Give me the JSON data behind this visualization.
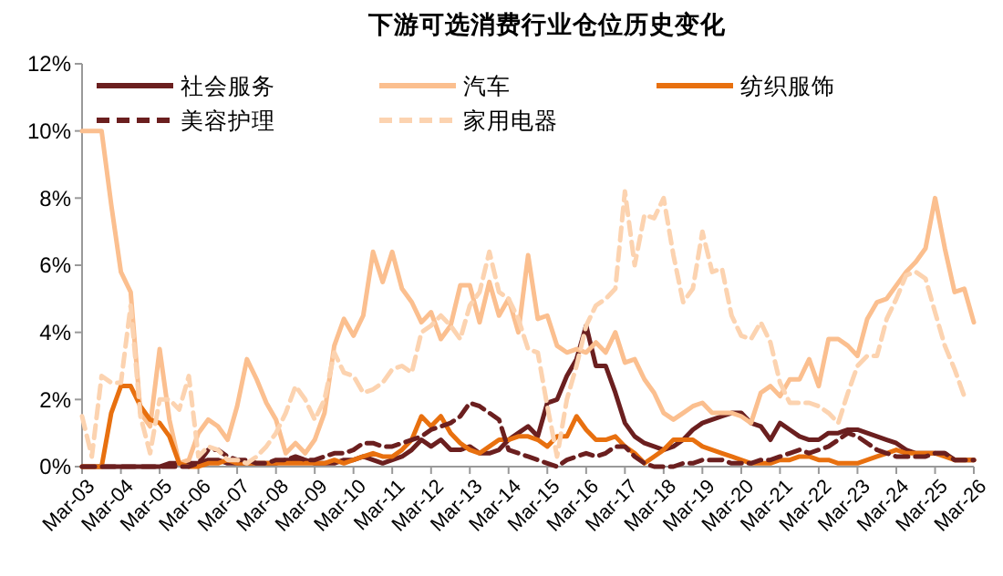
{
  "chart_data": {
    "type": "line",
    "title": "下游可选消费行业仓位历史变化",
    "x": [
      "2003-03",
      "2003-06",
      "2003-09",
      "2003-12",
      "2004-03",
      "2004-06",
      "2004-09",
      "2004-12",
      "2005-03",
      "2005-06",
      "2005-09",
      "2005-12",
      "2006-03",
      "2006-06",
      "2006-09",
      "2006-12",
      "2007-03",
      "2007-06",
      "2007-09",
      "2007-12",
      "2008-03",
      "2008-06",
      "2008-09",
      "2008-12",
      "2009-03",
      "2009-06",
      "2009-09",
      "2009-12",
      "2010-03",
      "2010-06",
      "2010-09",
      "2010-12",
      "2011-03",
      "2011-06",
      "2011-09",
      "2011-12",
      "2012-03",
      "2012-06",
      "2012-09",
      "2012-12",
      "2013-03",
      "2013-06",
      "2013-09",
      "2013-12",
      "2014-03",
      "2014-06",
      "2014-09",
      "2014-12",
      "2015-03",
      "2015-06",
      "2015-09",
      "2015-12",
      "2016-03",
      "2016-06",
      "2016-09",
      "2016-12",
      "2017-03",
      "2017-06",
      "2017-09",
      "2017-12",
      "2018-03",
      "2018-06",
      "2018-09",
      "2018-12",
      "2019-03",
      "2019-06",
      "2019-09",
      "2019-12",
      "2020-03",
      "2020-06",
      "2020-09",
      "2020-12",
      "2021-03",
      "2021-06",
      "2021-09",
      "2021-12",
      "2022-03",
      "2022-06",
      "2022-09",
      "2022-12",
      "2023-03",
      "2023-06",
      "2023-09",
      "2023-12",
      "2024-03",
      "2024-06",
      "2024-09",
      "2024-12",
      "2025-03",
      "2025-06",
      "2025-09",
      "2025-12",
      "2026-03"
    ],
    "series": [
      {
        "name": "社会服务",
        "color": "#6b1f1f",
        "line_style": "solid",
        "values": [
          0,
          0,
          0,
          0,
          0,
          0,
          0,
          0,
          0,
          0.1,
          0.1,
          0.1,
          0.1,
          0.2,
          0.2,
          0.1,
          0.1,
          0.1,
          0.1,
          0.1,
          0.1,
          0.2,
          0.2,
          0.2,
          0.1,
          0.1,
          0.1,
          0.2,
          0.2,
          0.3,
          0.2,
          0.1,
          0.2,
          0.3,
          0.5,
          0.8,
          0.6,
          0.8,
          0.5,
          0.5,
          0.6,
          0.4,
          0.4,
          0.5,
          0.8,
          1.0,
          1.2,
          0.9,
          1.9,
          2.0,
          2.7,
          3.2,
          4.2,
          3.0,
          3.0,
          2.2,
          1.3,
          0.9,
          0.7,
          0.6,
          0.5,
          0.6,
          0.8,
          1.1,
          1.3,
          1.4,
          1.5,
          1.6,
          1.6,
          1.3,
          1.2,
          0.8,
          1.3,
          1.1,
          0.9,
          0.8,
          0.8,
          1.0,
          1.0,
          1.1,
          1.1,
          1.0,
          0.9,
          0.8,
          0.7,
          0.5,
          0.4,
          0.4,
          0.4,
          0.4,
          0.2,
          0.2,
          0.2
        ]
      },
      {
        "name": "汽车",
        "color": "#fbbf8f",
        "line_style": "solid",
        "values": [
          10.0,
          10.0,
          10.0,
          7.8,
          5.8,
          5.2,
          1.6,
          1.2,
          3.5,
          1.4,
          0.1,
          0.2,
          1.0,
          1.4,
          1.2,
          0.8,
          1.8,
          3.2,
          2.6,
          1.9,
          1.4,
          0.4,
          0.7,
          0.4,
          0.8,
          1.6,
          3.6,
          4.4,
          3.9,
          4.5,
          6.4,
          5.5,
          6.4,
          5.3,
          4.9,
          4.3,
          4.6,
          3.8,
          4.2,
          5.4,
          5.4,
          4.3,
          5.5,
          4.5,
          5.0,
          4.0,
          6.3,
          4.4,
          4.5,
          3.6,
          3.4,
          3.5,
          3.4,
          3.7,
          3.4,
          4.0,
          3.1,
          3.2,
          2.6,
          2.2,
          1.6,
          1.4,
          1.6,
          1.8,
          1.9,
          1.6,
          1.6,
          1.6,
          1.5,
          1.3,
          2.2,
          2.4,
          2.1,
          2.6,
          2.6,
          3.2,
          2.4,
          3.8,
          3.8,
          3.6,
          3.3,
          4.4,
          4.9,
          5.0,
          5.4,
          5.8,
          6.1,
          6.5,
          8.0,
          6.5,
          5.2,
          5.3,
          4.3
        ]
      },
      {
        "name": "纺织服饰",
        "color": "#e8700f",
        "line_style": "solid",
        "values": [
          0,
          0,
          0,
          1.6,
          2.4,
          2.4,
          1.8,
          1.4,
          1.3,
          0.9,
          0.1,
          0,
          0,
          0.1,
          0.1,
          0.2,
          0.1,
          0.1,
          0.1,
          0.1,
          0.1,
          0.1,
          0.1,
          0.1,
          0.1,
          0.1,
          0.2,
          0.1,
          0.2,
          0.3,
          0.4,
          0.3,
          0.3,
          0.5,
          0.8,
          1.5,
          1.2,
          1.5,
          1.0,
          0.7,
          0.5,
          0.4,
          0.6,
          0.8,
          0.8,
          0.9,
          0.9,
          0.8,
          0.6,
          0.9,
          0.9,
          1.5,
          1.1,
          0.8,
          0.8,
          0.9,
          0.6,
          0.4,
          0.1,
          0.3,
          0.5,
          0.8,
          0.8,
          0.8,
          0.6,
          0.5,
          0.4,
          0.3,
          0.2,
          0.1,
          0.1,
          0.1,
          0.2,
          0.2,
          0.3,
          0.3,
          0.2,
          0.2,
          0.1,
          0.1,
          0.1,
          0.2,
          0.3,
          0.4,
          0.5,
          0.4,
          0.4,
          0.4,
          0.4,
          0.3,
          0.2,
          0.2,
          0.2
        ]
      },
      {
        "name": "美容护理",
        "color": "#6b1f1f",
        "line_style": "dashed",
        "values": [
          0,
          0,
          0,
          0,
          0,
          0,
          0,
          0,
          0,
          0,
          0,
          0,
          0.1,
          0.5,
          0.5,
          0.3,
          0.2,
          0.2,
          0.1,
          0.1,
          0.2,
          0.2,
          0.3,
          0.2,
          0.2,
          0.3,
          0.4,
          0.4,
          0.5,
          0.7,
          0.7,
          0.6,
          0.6,
          0.7,
          0.8,
          0.9,
          1.1,
          1.2,
          1.3,
          1.5,
          1.9,
          1.8,
          1.6,
          1.4,
          0.5,
          0.4,
          0.3,
          0.2,
          0.1,
          0,
          0.2,
          0.3,
          0.4,
          0.3,
          0.4,
          0.6,
          0.6,
          0.3,
          0.1,
          0,
          0,
          0,
          0.1,
          0.1,
          0.2,
          0.2,
          0.2,
          0.1,
          0.1,
          0.1,
          0.2,
          0.2,
          0.3,
          0.4,
          0.5,
          0.4,
          0.5,
          0.6,
          0.8,
          1.0,
          0.9,
          0.7,
          0.5,
          0.4,
          0.3,
          0.3,
          0.3,
          0.3,
          0.4,
          0.4,
          0.2,
          0.2,
          0.2
        ]
      },
      {
        "name": "家用电器",
        "color": "#fcd3b0",
        "line_style": "dashed",
        "values": [
          1.5,
          0.3,
          2.7,
          2.5,
          2.5,
          4.8,
          1.5,
          0.4,
          2.0,
          2.0,
          1.7,
          2.7,
          0.3,
          0.6,
          0.5,
          0.2,
          0.2,
          0.1,
          0.3,
          0.6,
          1.0,
          1.6,
          2.4,
          2.0,
          1.4,
          2.0,
          3.4,
          2.8,
          2.7,
          2.2,
          2.3,
          2.5,
          2.9,
          3.0,
          2.8,
          4.0,
          4.2,
          4.5,
          4.2,
          3.8,
          4.8,
          5.2,
          6.4,
          5.2,
          5.0,
          4.4,
          3.5,
          3.4,
          1.8,
          0.3,
          2.0,
          3.0,
          4.2,
          4.8,
          5.0,
          5.3,
          8.2,
          6.0,
          7.5,
          7.4,
          8.0,
          6.3,
          4.9,
          5.3,
          7.0,
          5.8,
          5.9,
          4.5,
          3.9,
          3.8,
          4.3,
          3.7,
          2.5,
          1.9,
          1.9,
          1.9,
          1.8,
          1.6,
          1.3,
          2.2,
          3.0,
          3.3,
          3.3,
          4.4,
          5.0,
          5.7,
          5.8,
          5.6,
          4.6,
          3.6,
          2.9,
          2.1,
          null
        ]
      }
    ],
    "xlim": [
      "2003-03",
      "2026-03"
    ],
    "xticks": [
      {
        "value": "2003-03",
        "label": "Mar-03"
      },
      {
        "value": "2004-03",
        "label": "Mar-04"
      },
      {
        "value": "2005-03",
        "label": "Mar-05"
      },
      {
        "value": "2006-03",
        "label": "Mar-06"
      },
      {
        "value": "2007-03",
        "label": "Mar-07"
      },
      {
        "value": "2008-03",
        "label": "Mar-08"
      },
      {
        "value": "2009-03",
        "label": "Mar-09"
      },
      {
        "value": "2010-03",
        "label": "Mar-10"
      },
      {
        "value": "2011-03",
        "label": "Mar-11"
      },
      {
        "value": "2012-03",
        "label": "Mar-12"
      },
      {
        "value": "2013-03",
        "label": "Mar-13"
      },
      {
        "value": "2014-03",
        "label": "Mar-14"
      },
      {
        "value": "2015-03",
        "label": "Mar-15"
      },
      {
        "value": "2016-03",
        "label": "Mar-16"
      },
      {
        "value": "2017-03",
        "label": "Mar-17"
      },
      {
        "value": "2018-03",
        "label": "Mar-18"
      },
      {
        "value": "2019-03",
        "label": "Mar-19"
      },
      {
        "value": "2020-03",
        "label": "Mar-20"
      },
      {
        "value": "2021-03",
        "label": "Mar-21"
      },
      {
        "value": "2022-03",
        "label": "Mar-22"
      },
      {
        "value": "2023-03",
        "label": "Mar-23"
      },
      {
        "value": "2024-03",
        "label": "Mar-24"
      },
      {
        "value": "2025-03",
        "label": "Mar-25"
      },
      {
        "value": "2026-03",
        "label": "Mar-26"
      }
    ],
    "ylim": [
      0,
      12
    ],
    "yticks": [
      {
        "value": 0,
        "label": "0%"
      },
      {
        "value": 2,
        "label": "2%"
      },
      {
        "value": 4,
        "label": "4%"
      },
      {
        "value": 6,
        "label": "6%"
      },
      {
        "value": 8,
        "label": "8%"
      },
      {
        "value": 10,
        "label": "10%"
      },
      {
        "value": 12,
        "label": "12%"
      }
    ],
    "grid": false,
    "legend": "top",
    "marker": "none"
  }
}
